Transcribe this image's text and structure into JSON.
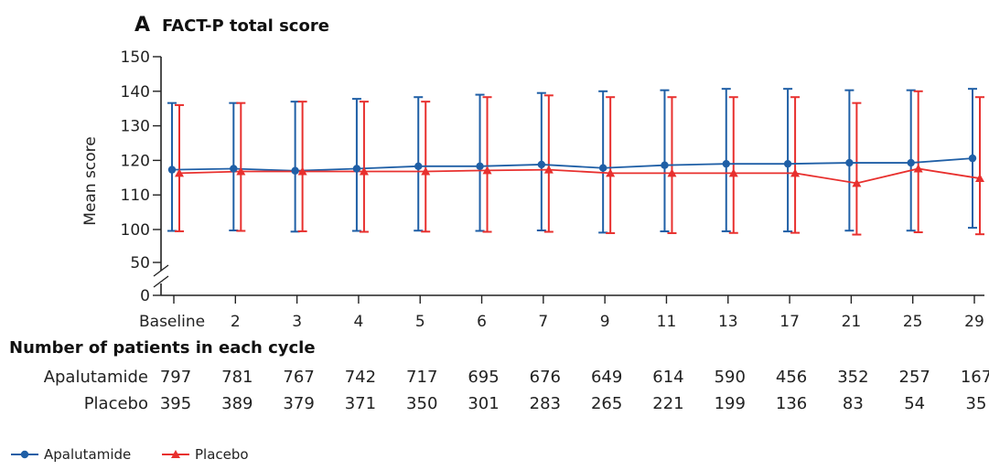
{
  "panel": {
    "letter": "A",
    "title": "FACT-P total score"
  },
  "colors": {
    "apalutamide": "#1f5fa6",
    "placebo": "#e8302e",
    "axis": "#222222"
  },
  "chart_data": {
    "type": "line",
    "title": "FACT-P total score",
    "xlabel": "",
    "ylabel": "Mean score",
    "categories": [
      "Baseline",
      "2",
      "3",
      "4",
      "5",
      "6",
      "7",
      "9",
      "11",
      "13",
      "17",
      "21",
      "25",
      "29"
    ],
    "y_ticks": [
      "0",
      "50",
      "100",
      "110",
      "120",
      "130",
      "140",
      "150"
    ],
    "y_axis_break": "between 0 and 50 (scale 50-150 shown)",
    "ylim": [
      0,
      150
    ],
    "grid": false,
    "legend_position": "bottom-left",
    "series": [
      {
        "name": "Apalutamide",
        "marker": "circle",
        "values": [
          117.3,
          117.6,
          117.0,
          117.6,
          118.3,
          118.3,
          118.8,
          117.8,
          118.6,
          119.0,
          119.0,
          119.3,
          119.3,
          120.6
        ],
        "upper": [
          136.6,
          136.6,
          137.0,
          137.8,
          138.3,
          139.0,
          139.5,
          140.0,
          140.3,
          140.7,
          140.7,
          140.3,
          140.3,
          140.7
        ],
        "lower": [
          97.9,
          98.6,
          96.8,
          97.9,
          98.3,
          97.9,
          98.6,
          95.3,
          97.2,
          97.3,
          97.1,
          98.3,
          98.3,
          100.5
        ]
      },
      {
        "name": "Placebo",
        "marker": "triangle",
        "values": [
          116.3,
          116.8,
          116.8,
          116.8,
          116.8,
          117.1,
          117.3,
          116.3,
          116.3,
          116.3,
          116.3,
          113.4,
          117.6,
          114.8
        ],
        "upper": [
          136.0,
          136.6,
          137.0,
          137.0,
          137.0,
          138.3,
          138.8,
          138.3,
          138.3,
          138.3,
          138.3,
          136.6,
          140.0,
          138.3
        ],
        "lower": [
          97.3,
          97.9,
          97.3,
          96.5,
          96.8,
          96.5,
          96.5,
          94.5,
          94.5,
          94.8,
          95.0,
          92.3,
          95.8,
          92.8
        ]
      }
    ]
  },
  "patients": {
    "header": "Number of patients in each cycle",
    "rows": [
      {
        "label": "Apalutamide",
        "counts": [
          "797",
          "781",
          "767",
          "742",
          "717",
          "695",
          "676",
          "649",
          "614",
          "590",
          "456",
          "352",
          "257",
          "167"
        ]
      },
      {
        "label": "Placebo",
        "counts": [
          "395",
          "389",
          "379",
          "371",
          "350",
          "301",
          "283",
          "265",
          "221",
          "199",
          "136",
          "83",
          "54",
          "35"
        ]
      }
    ]
  },
  "legend": [
    {
      "label": "Apalutamide",
      "marker": "circle"
    },
    {
      "label": "Placebo",
      "marker": "triangle"
    }
  ]
}
